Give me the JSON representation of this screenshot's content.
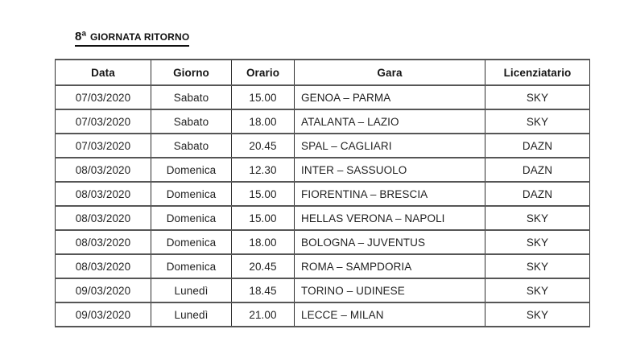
{
  "page": {
    "title": {
      "number": "8ª",
      "label": "GIORNATA RITORNO"
    }
  },
  "colors": {
    "background": "#ffffff",
    "text": "#222222",
    "title_text": "#111111",
    "border_horizontal": "#565656",
    "border_vertical": "#2e2e2e"
  },
  "table": {
    "headers": {
      "data": "Data",
      "giorno": "Giorno",
      "orario": "Orario",
      "gara": "Gara",
      "licenziatario": "Licenziatario"
    },
    "rows": [
      {
        "data": "07/03/2020",
        "giorno": "Sabato",
        "orario": "15.00",
        "gara": "GENOA – PARMA",
        "licenziatario": "SKY"
      },
      {
        "data": "07/03/2020",
        "giorno": "Sabato",
        "orario": "18.00",
        "gara": "ATALANTA – LAZIO",
        "licenziatario": "SKY"
      },
      {
        "data": "07/03/2020",
        "giorno": "Sabato",
        "orario": "20.45",
        "gara": "SPAL – CAGLIARI",
        "licenziatario": "DAZN"
      },
      {
        "data": "08/03/2020",
        "giorno": "Domenica",
        "orario": "12.30",
        "gara": "INTER – SASSUOLO",
        "licenziatario": "DAZN"
      },
      {
        "data": "08/03/2020",
        "giorno": "Domenica",
        "orario": "15.00",
        "gara": "FIORENTINA – BRESCIA",
        "licenziatario": "DAZN"
      },
      {
        "data": "08/03/2020",
        "giorno": "Domenica",
        "orario": "15.00",
        "gara": "HELLAS VERONA – NAPOLI",
        "licenziatario": "SKY"
      },
      {
        "data": "08/03/2020",
        "giorno": "Domenica",
        "orario": "18.00",
        "gara": "BOLOGNA – JUVENTUS",
        "licenziatario": "SKY"
      },
      {
        "data": "08/03/2020",
        "giorno": "Domenica",
        "orario": "20.45",
        "gara": "ROMA – SAMPDORIA",
        "licenziatario": "SKY"
      },
      {
        "data": "09/03/2020",
        "giorno": "Lunedì",
        "orario": "18.45",
        "gara": "TORINO – UDINESE",
        "licenziatario": "SKY"
      },
      {
        "data": "09/03/2020",
        "giorno": "Lunedì",
        "orario": "21.00",
        "gara": "LECCE – MILAN",
        "licenziatario": "SKY"
      }
    ]
  }
}
